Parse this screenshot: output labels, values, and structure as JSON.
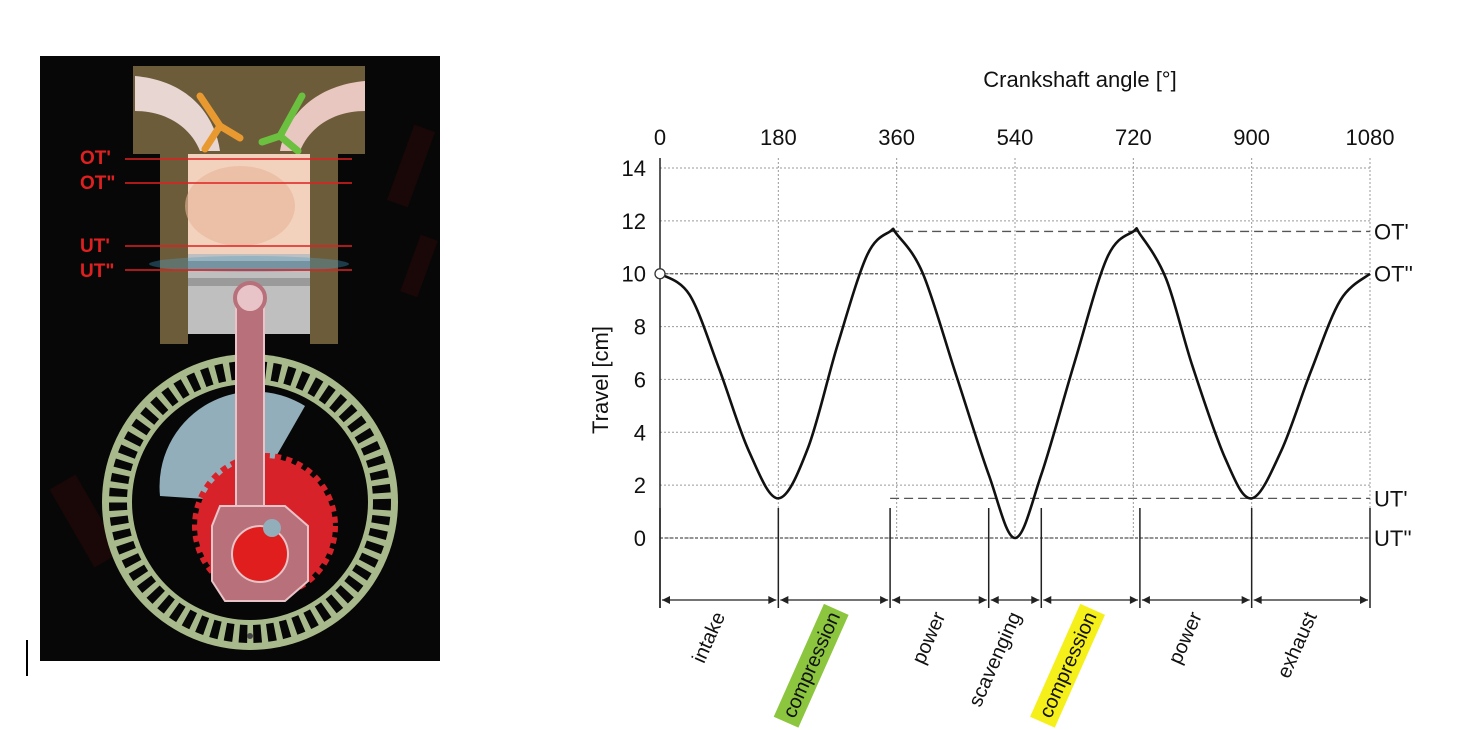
{
  "engine": {
    "labels": [
      "OT'",
      "OT\"",
      "UT'",
      "UT\""
    ],
    "colors": {
      "background": "#070707",
      "cylinder": "#6d5c3a",
      "chamber": "#f3d2bd",
      "piston": "#bfbfbf",
      "rod": "#b8707a",
      "outer_gear": "#a8ba8c",
      "inner_gear": "#d8222a",
      "counterweight": "#92aeba",
      "intake_valve": "#e89a30",
      "exhaust_valve": "#6cc040",
      "marker_line": "#e02020"
    }
  },
  "chart_data": {
    "type": "line",
    "xlabel": "Crankshaft angle [°]",
    "ylabel": "Travel [cm]",
    "xlim": [
      0,
      1080
    ],
    "ylim": [
      0,
      14
    ],
    "xticks": [
      "0",
      "180",
      "360",
      "540",
      "720",
      "900",
      "1080"
    ],
    "yticks": [
      "0",
      "2",
      "4",
      "6",
      "8",
      "10",
      "12",
      "14"
    ],
    "grid": true,
    "series": [
      {
        "x": [
          0,
          45,
          90,
          135,
          180,
          225,
          270,
          315,
          350,
          360,
          400,
          450,
          500,
          540,
          580,
          630,
          680,
          720,
          730,
          770,
          810,
          860,
          900,
          945,
          990,
          1035,
          1080
        ],
        "y": [
          10,
          9.2,
          6.4,
          3.3,
          1.5,
          3.4,
          7.3,
          10.7,
          11.6,
          11.5,
          10.0,
          6.2,
          2.4,
          0,
          2.4,
          6.6,
          10.6,
          11.6,
          11.5,
          9.8,
          6.5,
          3.0,
          1.5,
          3.3,
          6.3,
          9.0,
          10
        ]
      }
    ],
    "reference_lines": [
      {
        "label": "OT'",
        "y": 11.6
      },
      {
        "label": "OT''",
        "y": 10
      },
      {
        "label": "UT'",
        "y": 1.5
      },
      {
        "label": "UT''",
        "y": 0
      }
    ],
    "phases": [
      {
        "label": "intake",
        "start": 0,
        "end": 180,
        "highlight": ""
      },
      {
        "label": "compression",
        "start": 180,
        "end": 350,
        "highlight": "#8cc63f"
      },
      {
        "label": "power",
        "start": 350,
        "end": 500,
        "highlight": ""
      },
      {
        "label": "scavenging",
        "start": 500,
        "end": 580,
        "highlight": ""
      },
      {
        "label": "compression",
        "start": 580,
        "end": 730,
        "highlight": "#f5ef1a"
      },
      {
        "label": "power",
        "start": 730,
        "end": 900,
        "highlight": ""
      },
      {
        "label": "exhaust",
        "start": 900,
        "end": 1080,
        "highlight": ""
      }
    ]
  }
}
